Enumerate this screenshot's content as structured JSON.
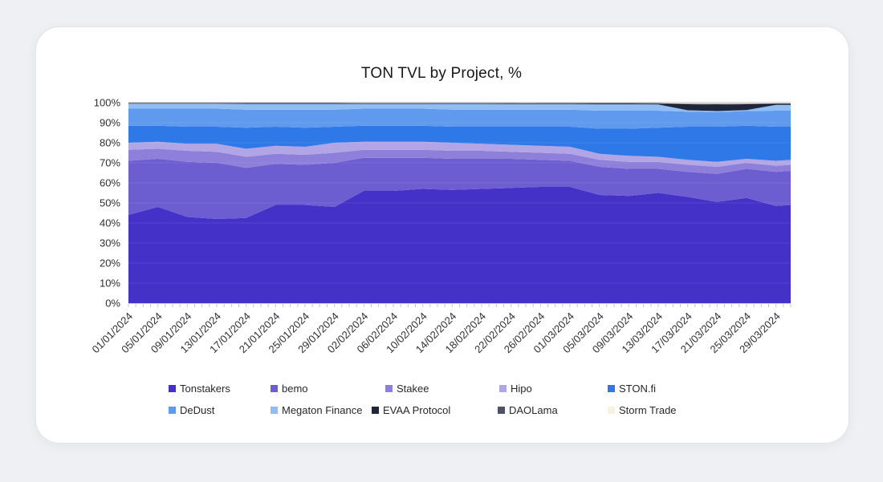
{
  "chart_data": {
    "type": "area",
    "stacked": true,
    "normalized_percent": true,
    "title": "TON TVL by Project, %",
    "xlabel": "",
    "ylabel": "",
    "ylim": [
      0,
      100
    ],
    "y_tick_labels": [
      "0%",
      "10%",
      "20%",
      "30%",
      "40%",
      "50%",
      "60%",
      "70%",
      "80%",
      "90%",
      "100%"
    ],
    "x_tick_labels": [
      "01/01/2024",
      "05/01/2024",
      "09/01/2024",
      "13/01/2024",
      "17/01/2024",
      "21/01/2024",
      "25/01/2024",
      "29/01/2024",
      "02/02/2024",
      "06/02/2024",
      "10/02/2024",
      "14/02/2024",
      "18/02/2024",
      "22/02/2024",
      "26/02/2024",
      "01/03/2024",
      "05/03/2024",
      "09/03/2024",
      "13/03/2024",
      "17/03/2024",
      "21/03/2024",
      "25/03/2024",
      "29/03/2024"
    ],
    "x_days": [
      0,
      4,
      8,
      12,
      16,
      20,
      24,
      28,
      32,
      36,
      40,
      44,
      48,
      52,
      56,
      60,
      64,
      68,
      72,
      76,
      80,
      84,
      88,
      90
    ],
    "legend_position": "bottom",
    "grid": "horizontal-faint",
    "series": [
      {
        "name": "Tonstakers",
        "color": "#4432c8",
        "values": [
          44,
          48,
          43,
          42,
          42.5,
          49,
          49,
          48,
          56,
          56,
          57,
          56.5,
          57,
          57.5,
          58,
          58,
          54,
          53.5,
          55,
          53,
          50.5,
          52.5,
          48.5,
          49
        ]
      },
      {
        "name": "bemo",
        "color": "#6c5dd0",
        "values": [
          27,
          24,
          27.5,
          28,
          25,
          20.5,
          20,
          22,
          16.5,
          16.5,
          15.5,
          15.5,
          15,
          14.5,
          13.5,
          13,
          14,
          13.5,
          12,
          12.5,
          14,
          14.5,
          17,
          17
        ]
      },
      {
        "name": "Stakee",
        "color": "#8d7fda",
        "values": [
          5.5,
          5,
          5.5,
          5.5,
          5.5,
          5,
          5,
          5,
          4,
          4,
          4,
          4,
          4,
          3.5,
          3.5,
          3.5,
          3.5,
          3.5,
          3.5,
          3.5,
          3.5,
          3,
          3,
          3
        ]
      },
      {
        "name": "Hipo",
        "color": "#b2a5e5",
        "values": [
          3.5,
          3.5,
          3.5,
          4,
          4,
          4,
          4,
          5,
          4,
          4,
          4,
          4,
          3.5,
          3.5,
          3.5,
          3.5,
          3,
          3,
          2.5,
          2.5,
          2.5,
          2,
          2.5,
          2.5
        ]
      },
      {
        "name": "STON.fi",
        "color": "#2e79e7",
        "values": [
          8.5,
          8,
          8.5,
          8.5,
          10.5,
          9.5,
          9.5,
          8,
          8,
          8,
          8,
          8,
          8.5,
          9,
          9.5,
          10,
          12.5,
          13.5,
          14.5,
          16.5,
          17.5,
          16.5,
          17,
          16.5
        ]
      },
      {
        "name": "DeDust",
        "color": "#5f9aee",
        "values": [
          8.5,
          8.5,
          9,
          9,
          9,
          8.5,
          9,
          8.5,
          8.5,
          8.5,
          8.5,
          8.5,
          8.5,
          8.5,
          8.5,
          8.5,
          9,
          9,
          8.5,
          7.5,
          7.3,
          7.3,
          8,
          8
        ]
      },
      {
        "name": "Megaton Finance",
        "color": "#90bef4",
        "values": [
          2.5,
          2.5,
          2.5,
          2.5,
          2.9,
          2.9,
          2.9,
          2.9,
          2.4,
          2.4,
          2.4,
          2.9,
          2.9,
          2.8,
          2.8,
          2.8,
          3.2,
          3.2,
          3.1,
          0.7,
          0.5,
          0.5,
          2.9,
          2.9
        ]
      },
      {
        "name": "EVAA Protocol",
        "color": "#20263a",
        "values": [
          0.3,
          0.3,
          0.3,
          0.3,
          0.4,
          0.4,
          0.4,
          0.4,
          0.3,
          0.3,
          0.3,
          0.3,
          0.3,
          0.4,
          0.3,
          0.3,
          0.4,
          0.4,
          0.4,
          3.0,
          3.2,
          2.9,
          0.5,
          0.5
        ]
      },
      {
        "name": "DAOLama",
        "color": "#4d5365",
        "values": [
          0.1,
          0.1,
          0.1,
          0.1,
          0.1,
          0.1,
          0.1,
          0.1,
          0.2,
          0.2,
          0.2,
          0.2,
          0.2,
          0.2,
          0.2,
          0.2,
          0.2,
          0.2,
          0.3,
          0.3,
          0.4,
          0.3,
          0.3,
          0.3
        ]
      },
      {
        "name": "Storm Trade",
        "color": "#f8f2e0",
        "values": [
          0.1,
          0.1,
          0.1,
          0.1,
          0.1,
          0.1,
          0.1,
          0.1,
          0.1,
          0.1,
          0.1,
          0.1,
          0.1,
          0.1,
          0.2,
          0.2,
          0.2,
          0.2,
          0.2,
          0.5,
          0.6,
          0.5,
          0.3,
          0.3
        ]
      }
    ]
  }
}
